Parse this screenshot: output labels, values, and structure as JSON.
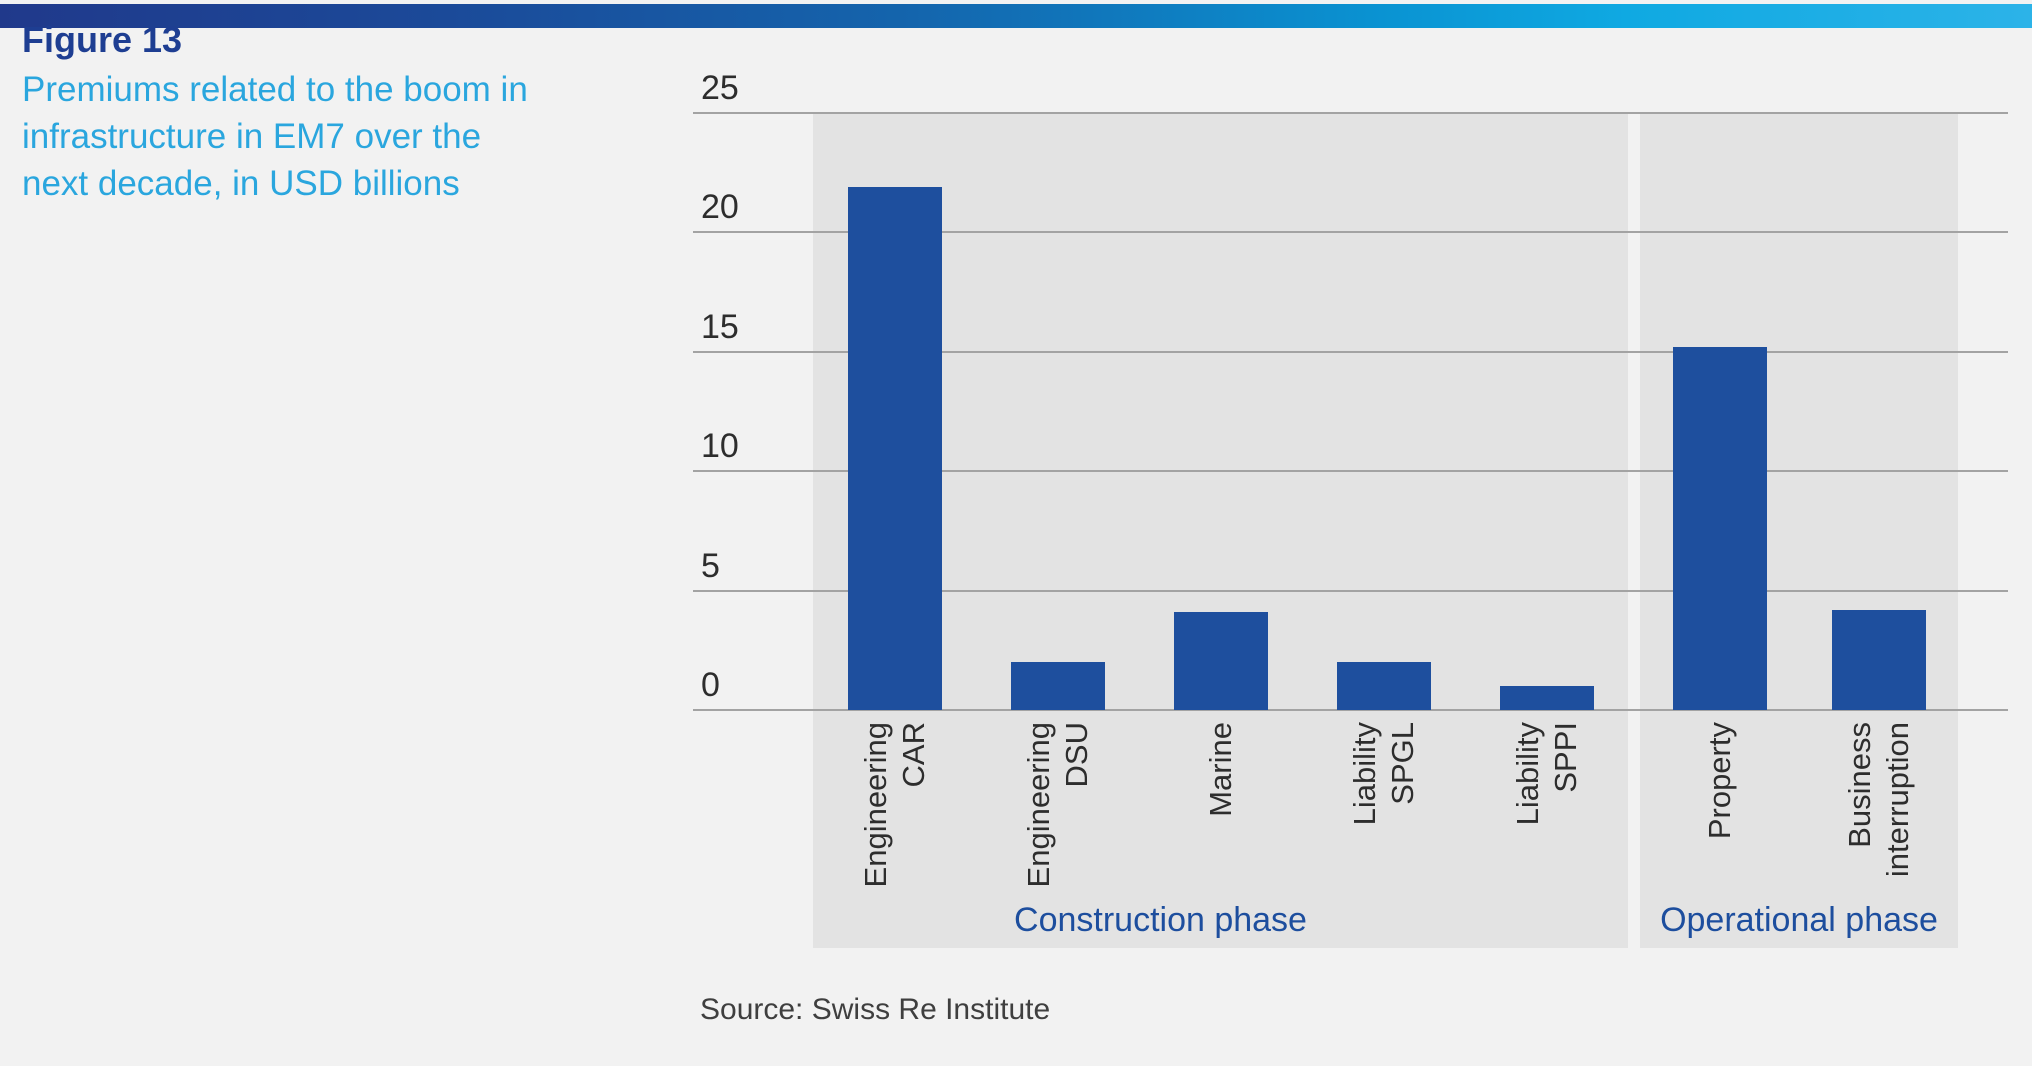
{
  "figure": {
    "label": "Figure 13",
    "title_lines": [
      "Premiums related to the boom in",
      "infrastructure in EM7 over the",
      "next decade, in USD billions"
    ],
    "label_color": "#1e3e92",
    "title_color": "#2aa6de"
  },
  "source": {
    "text": "Source: Swiss Re Institute"
  },
  "chart_data": {
    "type": "bar",
    "title": "Premiums related to the boom in infrastructure in EM7 over the next decade, in USD billions",
    "xlabel": "",
    "ylabel": "",
    "unit": "USD billions",
    "ylim": [
      0,
      25
    ],
    "yticks": [
      0,
      5,
      10,
      15,
      20,
      25
    ],
    "grid": "horizontal",
    "legend": "none",
    "bar_color": "#1e4f9e",
    "panel_color": "#e3e3e3",
    "gridline_color": "#a3a3a3",
    "tick_color": "#2d2d2d",
    "group_label_color": "#1d4e9e",
    "groups": [
      {
        "label": "Construction phase",
        "categories": [
          "Engineering CAR",
          "Engineering DSU",
          "Marine",
          "Liability SPGL",
          "Liability SPPI"
        ],
        "category_lines": [
          [
            "Engineering",
            "CAR"
          ],
          [
            "Engineering",
            "DSU"
          ],
          [
            "Marine"
          ],
          [
            "Liability",
            "SPGL"
          ],
          [
            "Liability",
            "SPPI"
          ]
        ],
        "values": [
          21.9,
          2.0,
          4.1,
          2.0,
          1.0
        ]
      },
      {
        "label": "Operational phase",
        "categories": [
          "Property",
          "Business interruption"
        ],
        "category_lines": [
          [
            "Property"
          ],
          [
            "Business",
            "interruption"
          ]
        ],
        "values": [
          15.2,
          4.2
        ]
      }
    ]
  }
}
